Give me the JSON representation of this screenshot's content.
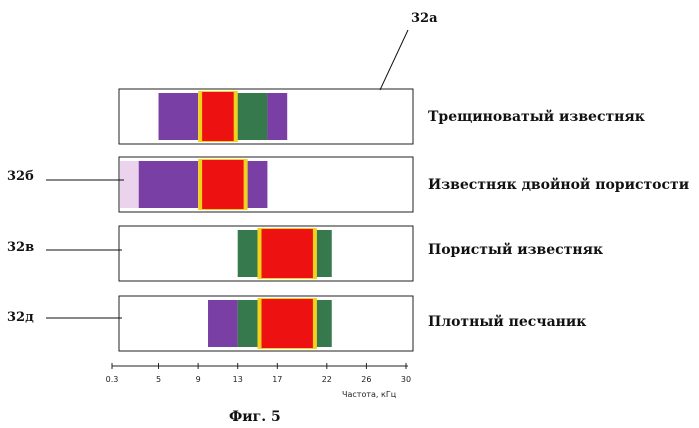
{
  "callouts": {
    "top": "32а",
    "b": "32б",
    "v": "32в",
    "d": "32д"
  },
  "strips": [
    {
      "label": "Трещиноватый известняк",
      "intensity": [
        {
          "from": 5,
          "to": 9,
          "level": 1
        },
        {
          "from": 9,
          "to": 13,
          "level": 4
        },
        {
          "from": 13,
          "to": 16,
          "level": 2
        },
        {
          "from": 16,
          "to": 18,
          "level": 1
        }
      ]
    },
    {
      "label": "Известняк двойной пористости",
      "intensity": [
        {
          "from": 0.3,
          "to": 3,
          "level": 0
        },
        {
          "from": 3,
          "to": 9,
          "level": 1
        },
        {
          "from": 9,
          "to": 14,
          "level": 4
        },
        {
          "from": 14,
          "to": 16,
          "level": 1
        }
      ]
    },
    {
      "label": "Пористый известняк",
      "intensity": [
        {
          "from": 13,
          "to": 15,
          "level": 2
        },
        {
          "from": 15,
          "to": 21,
          "level": 4
        },
        {
          "from": 21,
          "to": 22.5,
          "level": 2
        }
      ]
    },
    {
      "label": "Плотный песчаник",
      "intensity": [
        {
          "from": 10,
          "to": 13,
          "level": 1
        },
        {
          "from": 13,
          "to": 15,
          "level": 2
        },
        {
          "from": 15,
          "to": 21,
          "level": 4
        },
        {
          "from": 21,
          "to": 22.5,
          "level": 2
        }
      ]
    }
  ],
  "axis": {
    "ticks": [
      "0.3",
      "5",
      "9",
      "13",
      "17",
      "22",
      "26",
      "30"
    ],
    "tick_values": [
      0.3,
      5,
      9,
      13,
      17,
      22,
      26,
      30
    ],
    "title": "Частота, кГц",
    "range": [
      0.3,
      30
    ]
  },
  "caption": "Фиг. 5",
  "colors": {
    "level0": "#e6c8ea",
    "level1": "#6a2a9a",
    "level2": "#1f6a3a",
    "level3": "#f2d21a",
    "level4": "#ee1111",
    "frame": "#222222"
  }
}
